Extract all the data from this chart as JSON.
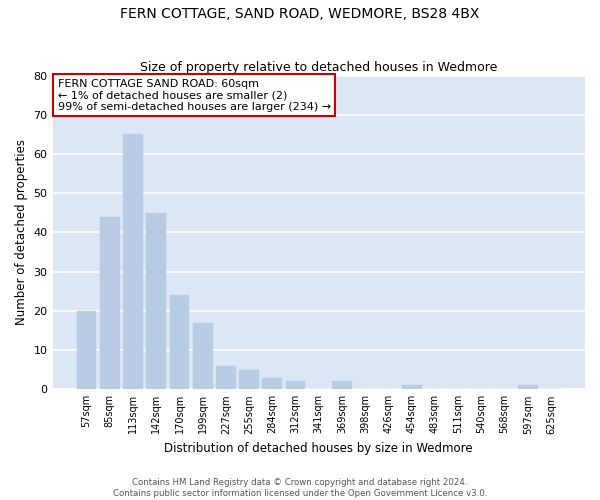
{
  "title": "FERN COTTAGE, SAND ROAD, WEDMORE, BS28 4BX",
  "subtitle": "Size of property relative to detached houses in Wedmore",
  "xlabel": "Distribution of detached houses by size in Wedmore",
  "ylabel": "Number of detached properties",
  "bar_color": "#b8cce4",
  "highlight_color": "#cc0000",
  "background_color": "#dce6f5",
  "categories": [
    "57sqm",
    "85sqm",
    "113sqm",
    "142sqm",
    "170sqm",
    "199sqm",
    "227sqm",
    "255sqm",
    "284sqm",
    "312sqm",
    "341sqm",
    "369sqm",
    "398sqm",
    "426sqm",
    "454sqm",
    "483sqm",
    "511sqm",
    "540sqm",
    "568sqm",
    "597sqm",
    "625sqm"
  ],
  "values": [
    20,
    44,
    65,
    45,
    24,
    17,
    6,
    5,
    3,
    2,
    0,
    2,
    0,
    0,
    1,
    0,
    0,
    0,
    0,
    1,
    0
  ],
  "annotation_title": "FERN COTTAGE SAND ROAD: 60sqm",
  "annotation_line1": "← 1% of detached houses are smaller (2)",
  "annotation_line2": "99% of semi-detached houses are larger (234) →",
  "ylim": [
    0,
    80
  ],
  "yticks": [
    0,
    10,
    20,
    30,
    40,
    50,
    60,
    70,
    80
  ],
  "footer_line1": "Contains HM Land Registry data © Crown copyright and database right 2024.",
  "footer_line2": "Contains public sector information licensed under the Open Government Licence v3.0."
}
